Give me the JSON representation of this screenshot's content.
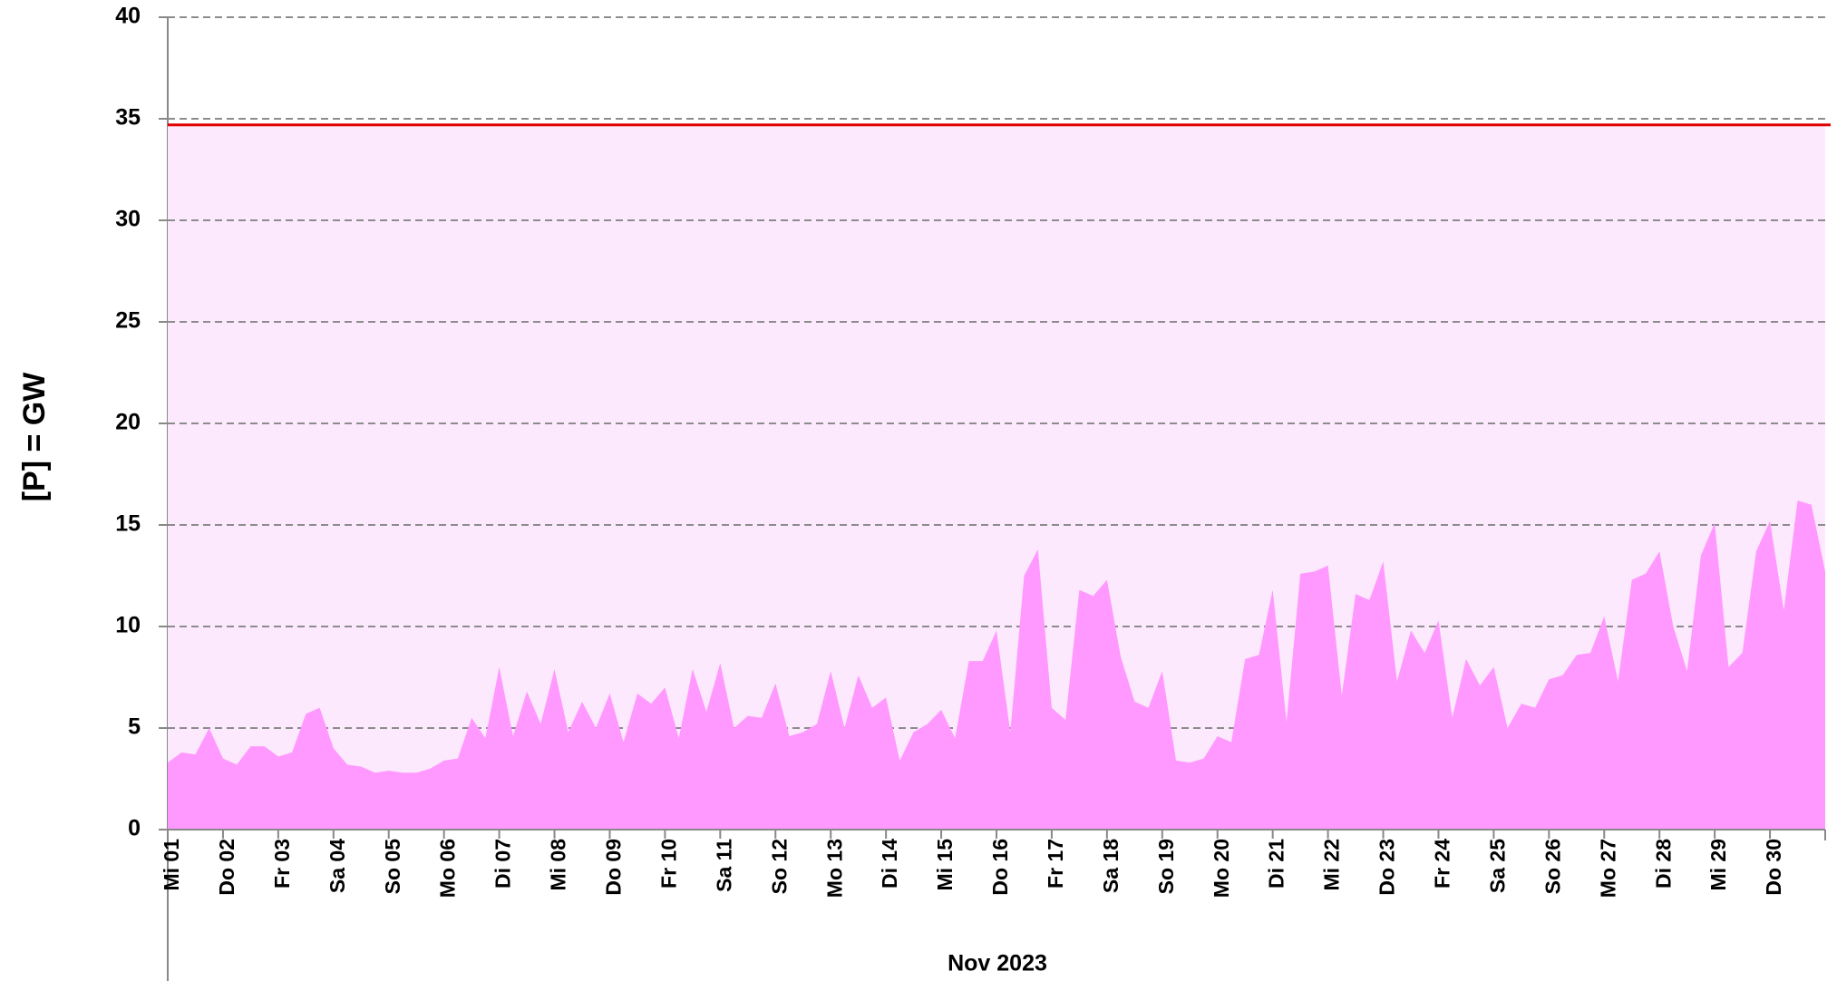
{
  "chart_data": {
    "type": "area",
    "ylabel": "[P]  = GW",
    "xlabel": "Nov 2023",
    "xlim": [
      1,
      31
    ],
    "xticks": [
      {
        "value": 1,
        "label": "Mi 01"
      },
      {
        "value": 2,
        "label": "Do 02"
      },
      {
        "value": 3,
        "label": "Fr 03"
      },
      {
        "value": 4,
        "label": "Sa 04"
      },
      {
        "value": 5,
        "label": "So 05"
      },
      {
        "value": 6,
        "label": "Mo 06"
      },
      {
        "value": 7,
        "label": "Di 07"
      },
      {
        "value": 8,
        "label": "Mi 08"
      },
      {
        "value": 9,
        "label": "Do 09"
      },
      {
        "value": 10,
        "label": "Fr 10"
      },
      {
        "value": 11,
        "label": "Sa 11"
      },
      {
        "value": 12,
        "label": "So 12"
      },
      {
        "value": 13,
        "label": "Mo 13"
      },
      {
        "value": 14,
        "label": "Di 14"
      },
      {
        "value": 15,
        "label": "Mi 15"
      },
      {
        "value": 16,
        "label": "Do 16"
      },
      {
        "value": 17,
        "label": "Fr 17"
      },
      {
        "value": 18,
        "label": "Sa 18"
      },
      {
        "value": 19,
        "label": "So 19"
      },
      {
        "value": 20,
        "label": "Mo 20"
      },
      {
        "value": 21,
        "label": "Di 21"
      },
      {
        "value": 22,
        "label": "Mi 22"
      },
      {
        "value": 23,
        "label": "Do 23"
      },
      {
        "value": 24,
        "label": "Fr 24"
      },
      {
        "value": 25,
        "label": "Sa 25"
      },
      {
        "value": 26,
        "label": "So 26"
      },
      {
        "value": 27,
        "label": "Mo 27"
      },
      {
        "value": 28,
        "label": "Di 28"
      },
      {
        "value": 29,
        "label": "Mi 29"
      },
      {
        "value": 30,
        "label": "Do 30"
      }
    ],
    "ylim": [
      0,
      40
    ],
    "yticks": [
      0,
      5,
      10,
      15,
      20,
      25,
      30,
      35,
      40
    ],
    "grid": true,
    "x": [
      1,
      1.25,
      1.5,
      1.75,
      2,
      2.25,
      2.5,
      2.75,
      3,
      3.25,
      3.5,
      3.75,
      4,
      4.25,
      4.5,
      4.75,
      5,
      5.25,
      5.5,
      5.75,
      6,
      6.25,
      6.5,
      6.75,
      7,
      7.25,
      7.5,
      7.75,
      8,
      8.25,
      8.5,
      8.75,
      9,
      9.25,
      9.5,
      9.75,
      10,
      10.25,
      10.5,
      10.75,
      11,
      11.25,
      11.5,
      11.75,
      12,
      12.25,
      12.5,
      12.75,
      13,
      13.25,
      13.5,
      13.75,
      14,
      14.25,
      14.5,
      14.75,
      15,
      15.25,
      15.5,
      15.75,
      16,
      16.25,
      16.5,
      16.75,
      17,
      17.25,
      17.5,
      17.75,
      18,
      18.25,
      18.5,
      18.75,
      19,
      19.25,
      19.5,
      19.75,
      20,
      20.25,
      20.5,
      20.75,
      21,
      21.25,
      21.5,
      21.75,
      22,
      22.25,
      22.5,
      22.75,
      23,
      23.25,
      23.5,
      23.75,
      24,
      24.25,
      24.5,
      24.75,
      25,
      25.25,
      25.5,
      25.75,
      26,
      26.25,
      26.5,
      26.75,
      27,
      27.25,
      27.5,
      27.75,
      28,
      28.25,
      28.5,
      28.75,
      29,
      29.25,
      29.5,
      29.75,
      30,
      30.25,
      30.5,
      30.75,
      31
    ],
    "series": [
      {
        "color": "#ff99ff",
        "values": [
          3.3,
          3.8,
          3.7,
          5.0,
          3.5,
          3.2,
          4.1,
          4.1,
          3.6,
          3.8,
          5.7,
          6.0,
          4.0,
          3.2,
          3.1,
          2.8,
          2.9,
          2.8,
          2.8,
          3.0,
          3.4,
          3.5,
          5.5,
          4.5,
          8.0,
          4.6,
          6.8,
          5.2,
          7.9,
          4.8,
          6.3,
          5.0,
          6.7,
          4.3,
          6.7,
          6.2,
          7.0,
          4.5,
          7.9,
          5.8,
          8.2,
          5.0,
          5.6,
          5.5,
          7.2,
          4.6,
          4.8,
          5.2,
          7.8,
          5.0,
          7.6,
          6.0,
          6.5,
          3.4,
          4.8,
          5.2,
          5.9,
          4.5,
          8.3,
          8.3,
          9.8,
          4.8,
          12.5,
          13.8,
          6.0,
          5.4,
          11.8,
          11.5,
          12.3,
          8.5,
          6.3,
          6.0,
          7.8,
          3.4,
          3.3,
          3.5,
          4.6,
          4.3,
          8.4,
          8.6,
          11.8,
          5.3,
          12.6,
          12.7,
          13.0,
          6.6,
          11.6,
          11.3,
          13.2,
          7.3,
          9.8,
          8.7,
          10.3,
          5.5,
          8.4,
          7.1,
          8.0,
          5.0,
          6.2,
          6.0,
          7.4,
          7.6,
          8.6,
          8.7,
          10.5,
          7.3,
          12.3,
          12.6,
          13.7,
          10.0,
          7.8,
          13.5,
          15.1,
          8.0,
          8.7,
          13.7,
          15.2,
          10.8,
          16.2,
          16.0,
          12.7
        ]
      }
    ],
    "reference_line": {
      "value": 34.7,
      "color": "#e00000",
      "fill": "#fde9fd"
    }
  }
}
